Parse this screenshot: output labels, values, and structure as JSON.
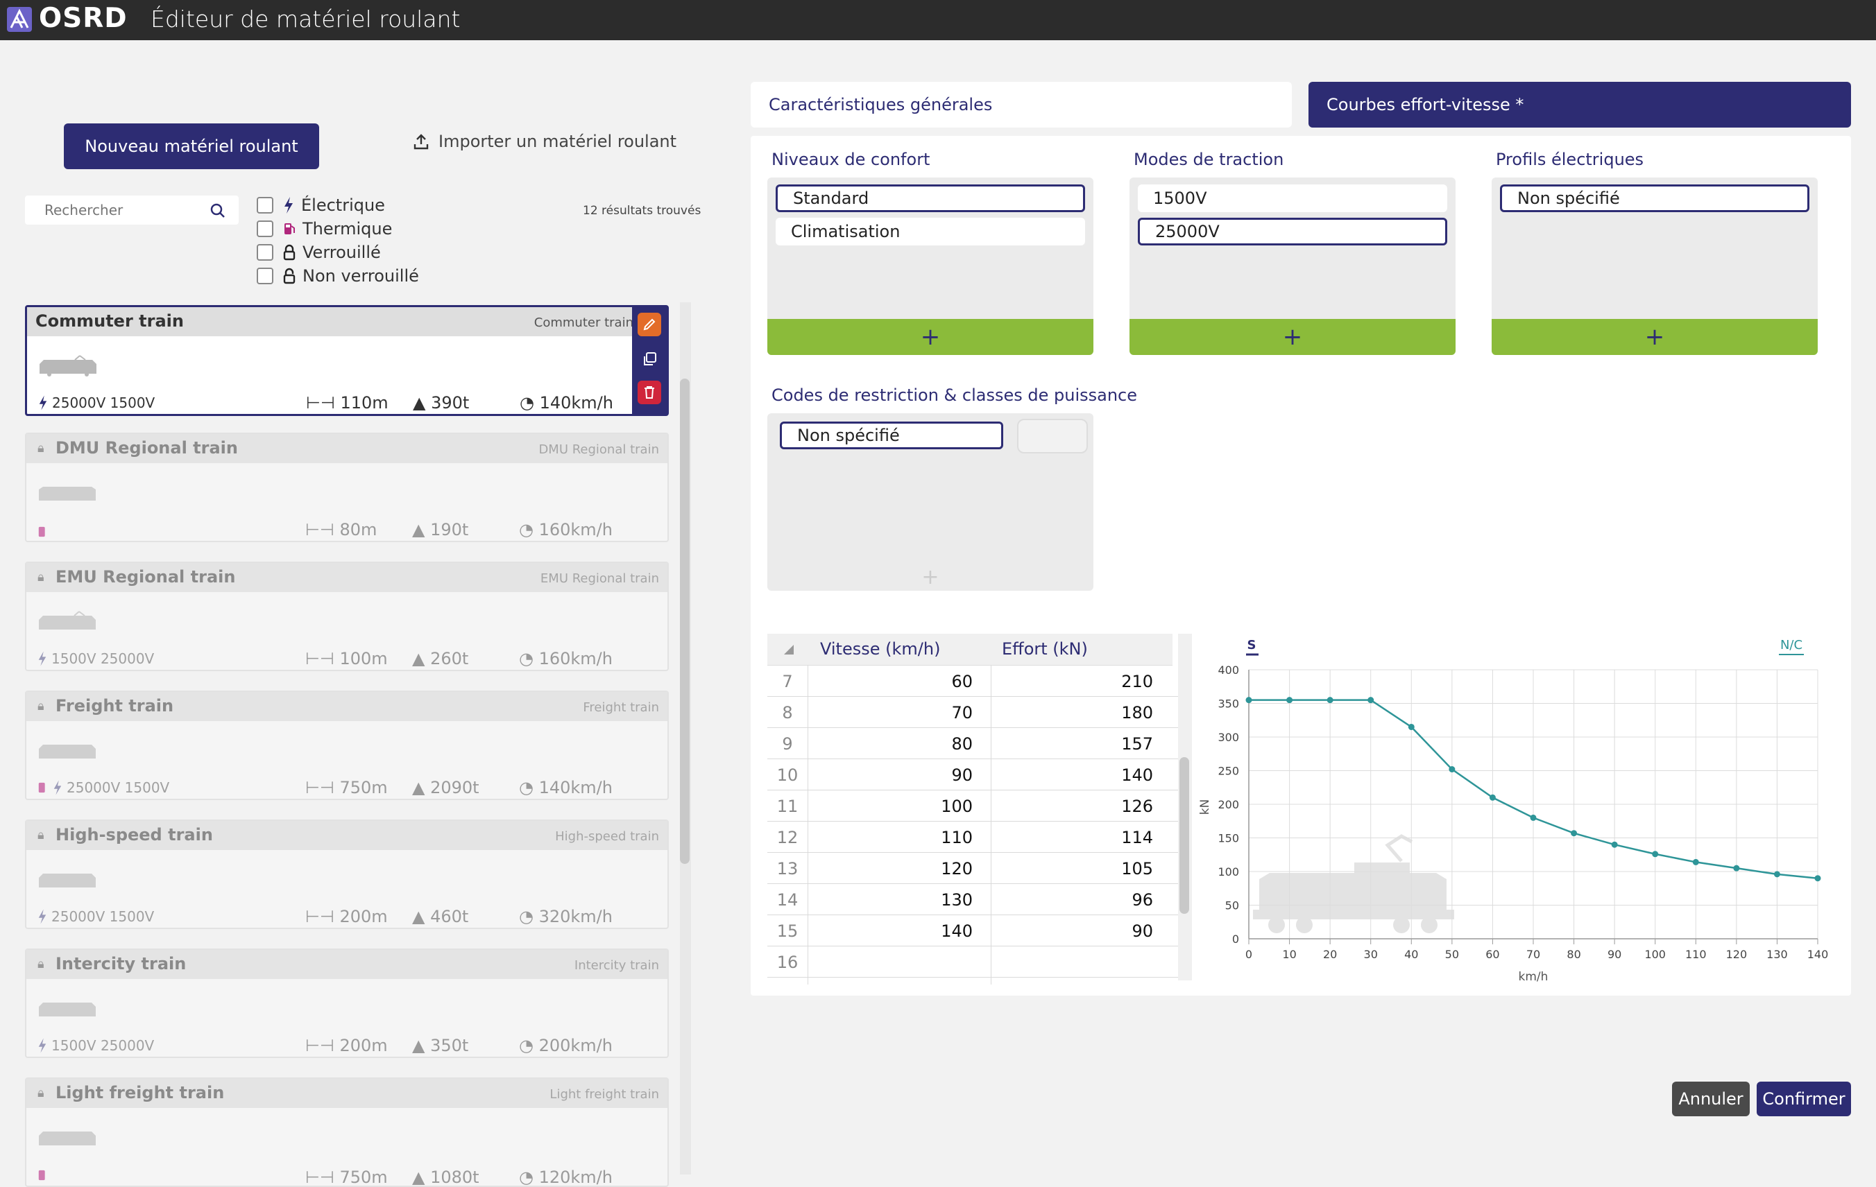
{
  "app": {
    "brand": "OSRD",
    "title": "Éditeur de matériel roulant"
  },
  "actions": {
    "new": "Nouveau matériel roulant",
    "import": "Importer un matériel roulant"
  },
  "search": {
    "placeholder": "Rechercher",
    "results": "12 résultats trouvés"
  },
  "filters": [
    "Électrique",
    "Thermique",
    "Verrouillé",
    "Non verrouillé"
  ],
  "trains": [
    {
      "name": "Commuter train",
      "detail": "Commuter train",
      "modes": "25000V 1500V",
      "electric": true,
      "thermal": false,
      "length": "110m",
      "mass": "390t",
      "speed": "140km/h",
      "selected": true
    },
    {
      "name": "DMU Regional train",
      "detail": "DMU Regional train",
      "modes": "",
      "electric": false,
      "thermal": true,
      "length": "80m",
      "mass": "190t",
      "speed": "160km/h",
      "selected": false
    },
    {
      "name": "EMU Regional train",
      "detail": "EMU Regional train",
      "modes": "1500V 25000V",
      "electric": true,
      "thermal": false,
      "length": "100m",
      "mass": "260t",
      "speed": "160km/h",
      "selected": false
    },
    {
      "name": "Freight train",
      "detail": "Freight train",
      "modes": "25000V 1500V",
      "electric": true,
      "thermal": true,
      "length": "750m",
      "mass": "2090t",
      "speed": "140km/h",
      "selected": false
    },
    {
      "name": "High-speed train",
      "detail": "High-speed train",
      "modes": "25000V 1500V",
      "electric": true,
      "thermal": false,
      "length": "200m",
      "mass": "460t",
      "speed": "320km/h",
      "selected": false
    },
    {
      "name": "Intercity train",
      "detail": "Intercity train",
      "modes": "1500V 25000V",
      "electric": true,
      "thermal": false,
      "length": "200m",
      "mass": "350t",
      "speed": "200km/h",
      "selected": false
    },
    {
      "name": "Light freight train",
      "detail": "Light freight train",
      "modes": "",
      "electric": false,
      "thermal": true,
      "length": "750m",
      "mass": "1080t",
      "speed": "120km/h",
      "selected": false
    }
  ],
  "tabs": {
    "general": "Caractéristiques générales",
    "curves": "Courbes effort-vitesse *"
  },
  "comfort": {
    "title": "Niveaux de confort",
    "items": [
      "Standard",
      "Climatisation"
    ],
    "selected": 0
  },
  "traction": {
    "title": "Modes de traction",
    "items": [
      "1500V",
      "25000V"
    ],
    "selected": 1
  },
  "profiles": {
    "title": "Profils électriques",
    "items": [
      "Non spécifié"
    ],
    "selected": 0
  },
  "restriction": {
    "title": "Codes de restriction & classes de puissance",
    "items": [
      "Non spécifié"
    ],
    "selected": 0
  },
  "plus_symbol": "+",
  "table": {
    "col_speed": "Vitesse (km/h)",
    "col_effort": "Effort (kN)",
    "rows": [
      {
        "i": "7",
        "v": "60",
        "e": "210"
      },
      {
        "i": "8",
        "v": "70",
        "e": "180"
      },
      {
        "i": "9",
        "v": "80",
        "e": "157"
      },
      {
        "i": "10",
        "v": "90",
        "e": "140"
      },
      {
        "i": "11",
        "v": "100",
        "e": "126"
      },
      {
        "i": "12",
        "v": "110",
        "e": "114"
      },
      {
        "i": "13",
        "v": "120",
        "e": "105"
      },
      {
        "i": "14",
        "v": "130",
        "e": "96"
      },
      {
        "i": "15",
        "v": "140",
        "e": "90"
      },
      {
        "i": "16",
        "v": "",
        "e": ""
      }
    ]
  },
  "chart_data": {
    "type": "line",
    "legend_left": "S",
    "legend_right": "N/C",
    "xlabel": "km/h",
    "ylabel": "kN",
    "xlim": [
      0,
      140
    ],
    "ylim": [
      0,
      400
    ],
    "xticks": [
      0,
      10,
      20,
      30,
      40,
      50,
      60,
      70,
      80,
      90,
      100,
      110,
      120,
      130,
      140
    ],
    "yticks": [
      0,
      50,
      100,
      150,
      200,
      250,
      300,
      350,
      400
    ],
    "x": [
      0,
      10,
      20,
      30,
      40,
      50,
      60,
      70,
      80,
      90,
      100,
      110,
      120,
      130,
      140
    ],
    "y": [
      355,
      355,
      355,
      355,
      315,
      252,
      210,
      180,
      157,
      140,
      126,
      114,
      105,
      96,
      90
    ],
    "color": "#2e9598"
  },
  "footer": {
    "cancel": "Annuler",
    "confirm": "Confirmer"
  },
  "colors": {
    "primary": "#2d2c73",
    "accent_green": "#8bbb3a",
    "edit": "#e36c29",
    "delete": "#d0253b"
  }
}
